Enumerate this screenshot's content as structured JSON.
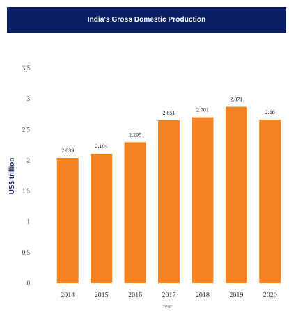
{
  "header": {
    "title": "India's Gross Domestic Production"
  },
  "colors": {
    "header_bg": "#0a1f66",
    "bar": "#f58220",
    "ylabel": "#1a2a7a"
  },
  "chart_data": {
    "type": "bar",
    "title": "India's Gross Domestic Production",
    "categories": [
      "2014",
      "2015",
      "2016",
      "2017",
      "2018",
      "2019",
      "2020"
    ],
    "values": [
      2.039,
      2.104,
      2.295,
      2.651,
      2.701,
      2.871,
      2.66
    ],
    "value_labels": [
      "2.039",
      "2.104",
      "2.295",
      "2.651",
      "2.701",
      "2.871",
      "2.66"
    ],
    "xlabel": "Year",
    "ylabel": "US$ trillion",
    "ylim": [
      0,
      3.5
    ],
    "yticks": [
      0,
      0.5,
      1,
      1.5,
      2,
      2.5,
      3,
      3.5
    ],
    "ytick_labels": [
      "0",
      "0.5",
      "1",
      "1.5",
      "2",
      "2.5",
      "3",
      "3.5"
    ],
    "grid": false,
    "legend": "none"
  }
}
